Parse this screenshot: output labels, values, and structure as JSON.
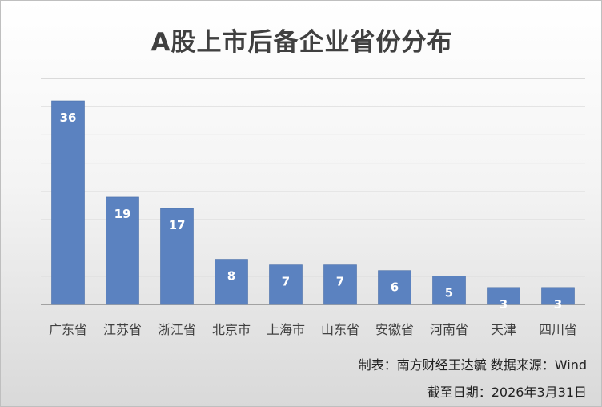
{
  "chart_data": {
    "type": "bar",
    "title": "A股上市后备企业省份分布",
    "categories": [
      "广东省",
      "江苏省",
      "浙江省",
      "北京市",
      "上海市",
      "山东省",
      "安徽省",
      "河南省",
      "天津",
      "四川省"
    ],
    "values": [
      36,
      19,
      17,
      8,
      7,
      7,
      6,
      5,
      3,
      3
    ],
    "ylim": [
      0,
      36
    ],
    "grid": true,
    "legend": "none",
    "bar_color": "#5b82c0",
    "label_color": "#ffffff"
  },
  "footer": {
    "source": "制表：南方财经王达毓 数据来源：Wind",
    "date": "截至日期：2026年3月31日"
  }
}
